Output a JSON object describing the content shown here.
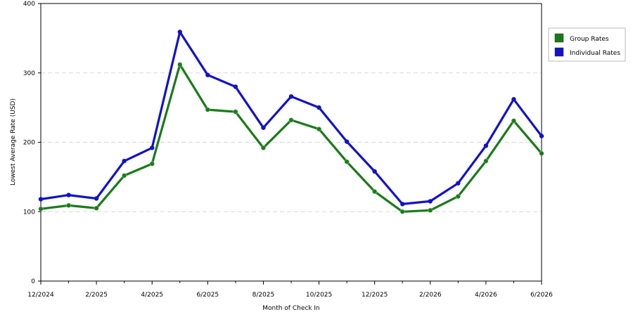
{
  "chart_data": {
    "type": "line",
    "xlabel": "Month of Check In",
    "ylabel": "Lowest Average Rate (USD)",
    "ylim": [
      0,
      400
    ],
    "y_ticks": [
      0,
      100,
      200,
      300,
      400
    ],
    "x_tick_labels": [
      "12/2024",
      "2/2025",
      "4/2025",
      "6/2025",
      "8/2025",
      "10/2025",
      "12/2025",
      "2/2026",
      "4/2026",
      "6/2026"
    ],
    "grid": true,
    "legend_position": "top-right",
    "x": [
      "12/2024",
      "1/2025",
      "2/2025",
      "3/2025",
      "4/2025",
      "5/2025",
      "6/2025",
      "7/2025",
      "8/2025",
      "9/2025",
      "10/2025",
      "11/2025",
      "12/2025",
      "1/2026",
      "2/2026",
      "3/2026",
      "4/2026",
      "5/2026",
      "6/2026"
    ],
    "series": [
      {
        "name": "Group Rates",
        "color": "#1a7a1a",
        "values": [
          104,
          109,
          105,
          152,
          169,
          312,
          247,
          244,
          192,
          232,
          219,
          172,
          129,
          100,
          102,
          122,
          173,
          231,
          184
        ]
      },
      {
        "name": "Individual Rates",
        "color": "#1212c8",
        "values": [
          118,
          124,
          119,
          173,
          192,
          359,
          297,
          280,
          221,
          266,
          250,
          201,
          158,
          111,
          115,
          141,
          195,
          262,
          209
        ]
      }
    ]
  }
}
